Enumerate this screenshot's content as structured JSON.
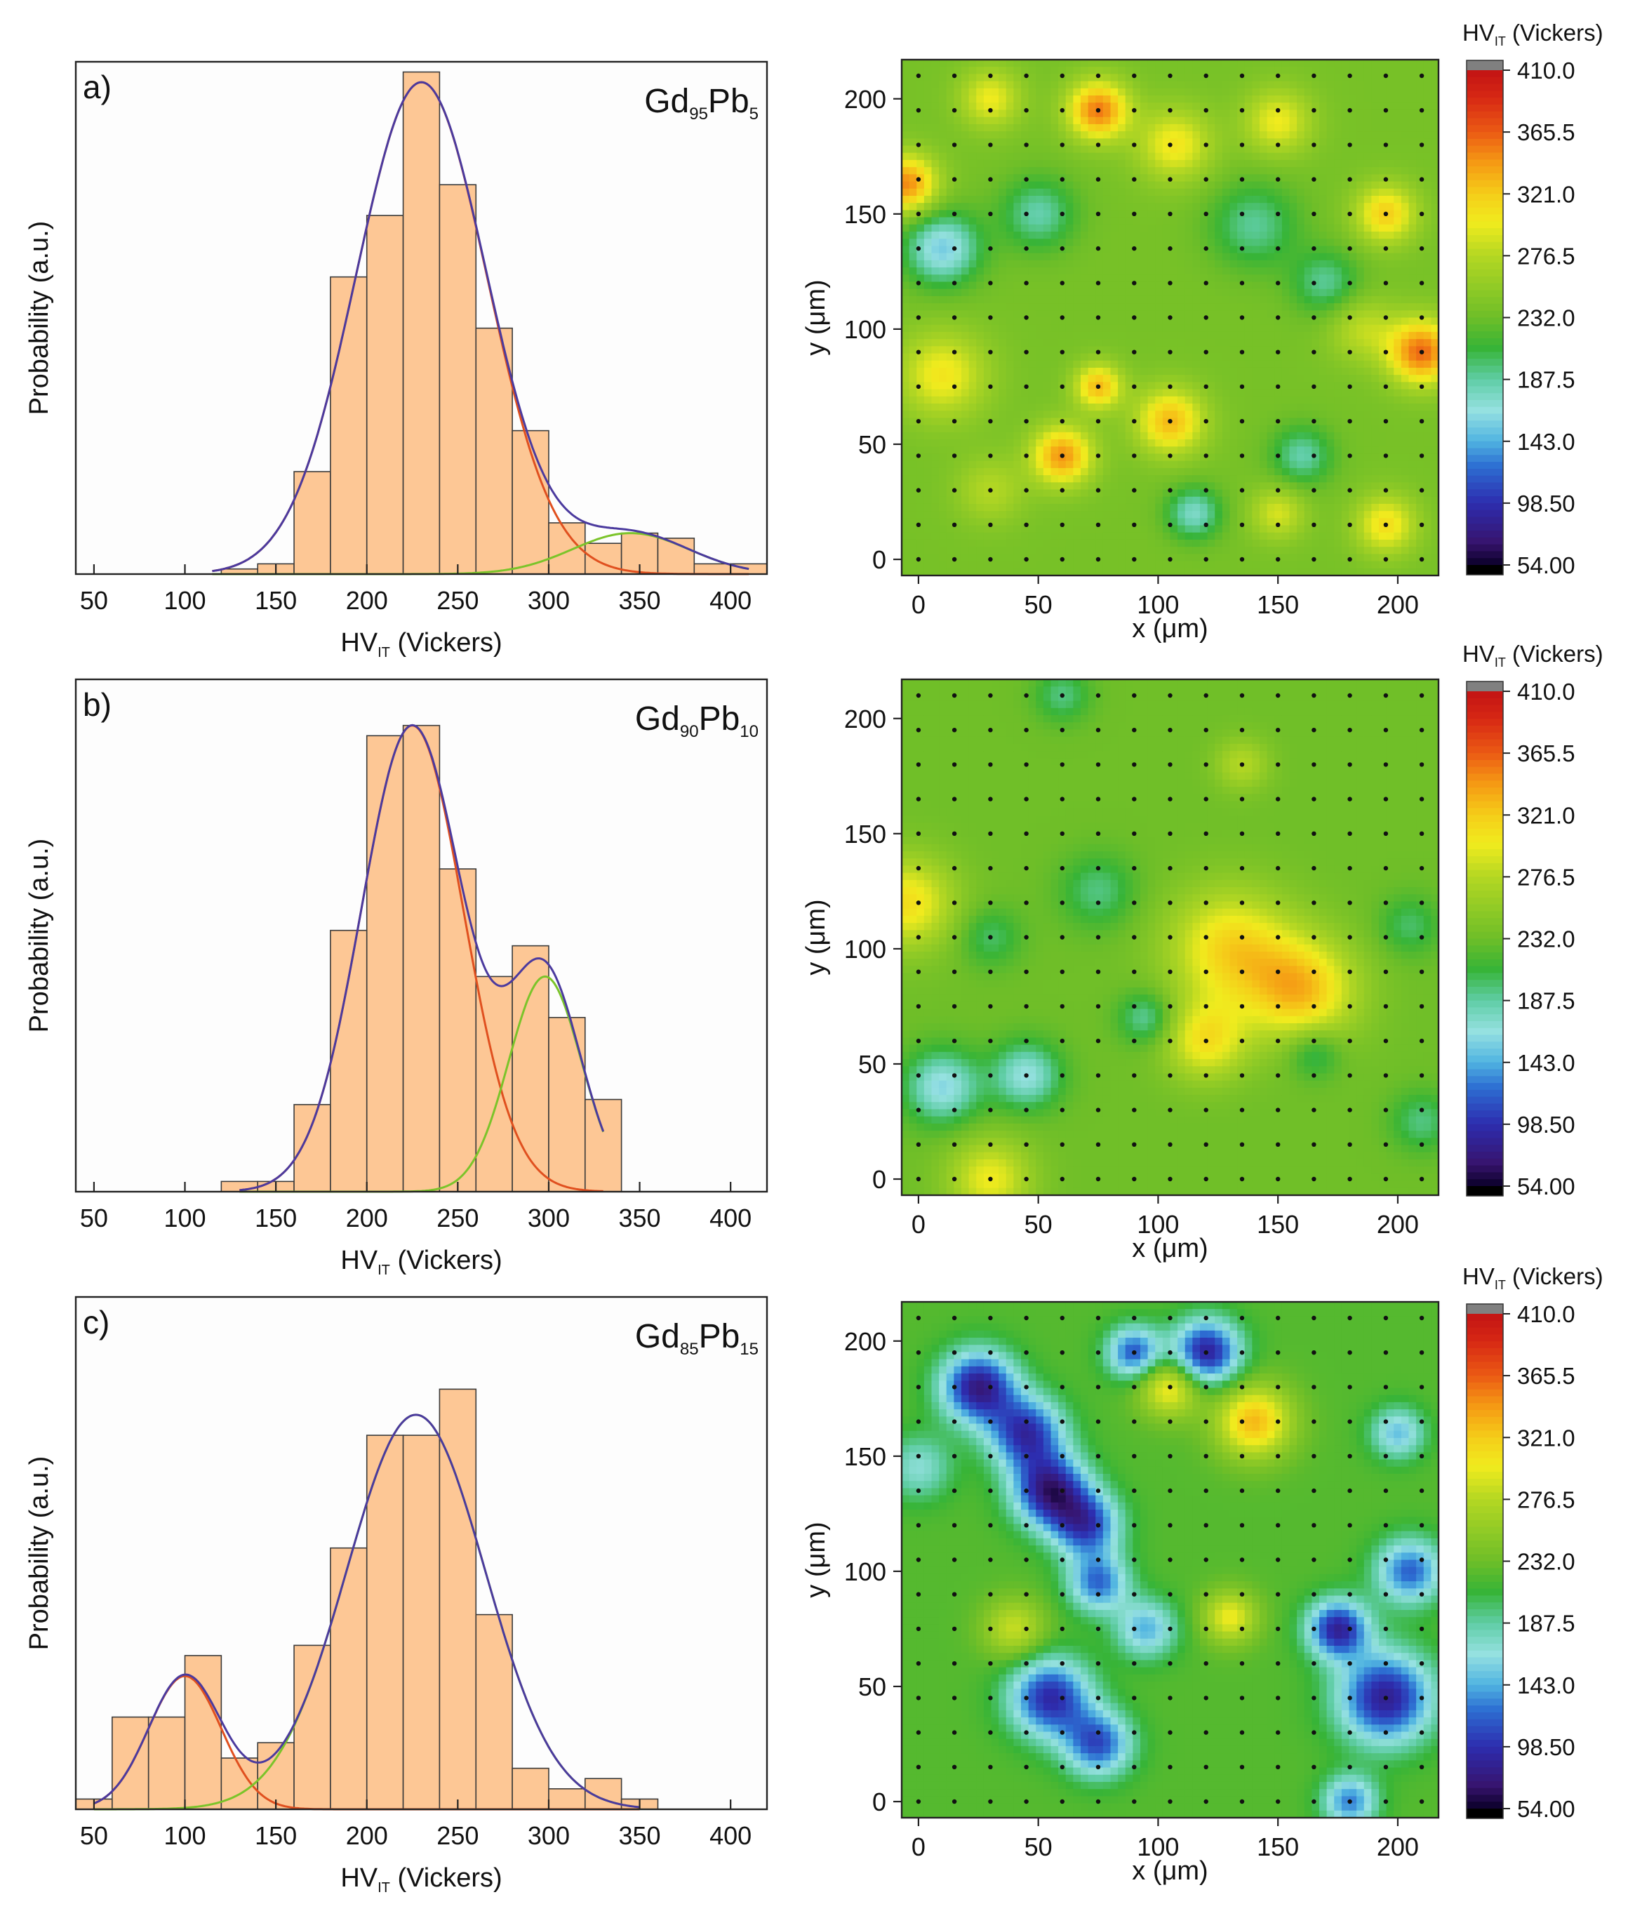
{
  "chart_data": [
    {
      "type": "bar",
      "panel_label": "a)",
      "sample": {
        "base1": "Gd",
        "sub1": "95",
        "base2": "Pb",
        "sub2": "5"
      },
      "xlabel_base": "HV",
      "xlabel_sub": "IT",
      "xlabel_rest": " (Vickers)",
      "ylabel": "Probability (a.u.)",
      "xlim": [
        40,
        420
      ],
      "ylim": [
        0,
        1.0
      ],
      "xticks": [
        "50",
        "100",
        "150",
        "200",
        "250",
        "300",
        "350",
        "400"
      ],
      "bin_width": 20,
      "bin_starts": [
        120,
        140,
        160,
        180,
        200,
        220,
        240,
        260,
        280,
        300,
        320,
        340,
        360,
        380,
        400
      ],
      "values": [
        0.01,
        0.02,
        0.2,
        0.58,
        0.7,
        0.98,
        0.76,
        0.48,
        0.28,
        0.1,
        0.06,
        0.08,
        0.07,
        0.02,
        0.02
      ],
      "fits": [
        {
          "name": "peak 1",
          "color": "#e0501f",
          "peaks": [
            [
              0.96,
              230,
              36
            ]
          ],
          "range": [
            115,
            410
          ]
        },
        {
          "name": "peak 2",
          "color": "#7bc42a",
          "peaks": [
            [
              0.08,
              345,
              32
            ]
          ],
          "range": [
            115,
            410
          ]
        },
        {
          "name": "cumulative",
          "color": "#4b3a9e",
          "peaks": [
            [
              0.96,
              230,
              36
            ],
            [
              0.08,
              345,
              32
            ]
          ],
          "range": [
            115,
            410
          ]
        }
      ]
    },
    {
      "type": "bar",
      "panel_label": "b)",
      "sample": {
        "base1": "Gd",
        "sub1": "90",
        "base2": "Pb",
        "sub2": "10"
      },
      "xlabel_base": "HV",
      "xlabel_sub": "IT",
      "xlabel_rest": " (Vickers)",
      "ylabel": "Probability (a.u.)",
      "xlim": [
        40,
        420
      ],
      "ylim": [
        0,
        1.0
      ],
      "xticks": [
        "50",
        "100",
        "150",
        "200",
        "250",
        "300",
        "350",
        "400"
      ],
      "bin_width": 20,
      "bin_starts": [
        120,
        140,
        160,
        180,
        200,
        220,
        240,
        260,
        280,
        300,
        320
      ],
      "values": [
        0.02,
        0.02,
        0.17,
        0.51,
        0.89,
        0.91,
        0.63,
        0.42,
        0.48,
        0.34,
        0.18
      ],
      "fits": [
        {
          "name": "peak 1",
          "color": "#e0501f",
          "peaks": [
            [
              0.91,
              225,
              28
            ]
          ],
          "range": [
            130,
            330
          ]
        },
        {
          "name": "peak 2",
          "color": "#7bc42a",
          "peaks": [
            [
              0.42,
              298,
              20
            ]
          ],
          "range": [
            130,
            330
          ]
        },
        {
          "name": "cumulative",
          "color": "#4b3a9e",
          "peaks": [
            [
              0.91,
              225,
              28
            ],
            [
              0.42,
              298,
              20
            ]
          ],
          "range": [
            130,
            330
          ]
        }
      ]
    },
    {
      "type": "bar",
      "panel_label": "c)",
      "sample": {
        "base1": "Gd",
        "sub1": "85",
        "base2": "Pb",
        "sub2": "15"
      },
      "xlabel_base": "HV",
      "xlabel_sub": "IT",
      "xlabel_rest": " (Vickers)",
      "ylabel": "Probability (a.u.)",
      "xlim": [
        40,
        420
      ],
      "ylim": [
        0,
        1.0
      ],
      "xticks": [
        "50",
        "100",
        "150",
        "200",
        "250",
        "300",
        "350",
        "400"
      ],
      "bin_width": 20,
      "bin_starts": [
        40,
        60,
        80,
        100,
        120,
        140,
        160,
        180,
        200,
        220,
        240,
        260,
        280,
        300,
        320,
        340
      ],
      "values": [
        0.02,
        0.18,
        0.18,
        0.3,
        0.1,
        0.13,
        0.32,
        0.51,
        0.73,
        0.73,
        0.82,
        0.38,
        0.08,
        0.04,
        0.06,
        0.02
      ],
      "fits": [
        {
          "name": "peak 1",
          "color": "#e0501f",
          "peaks": [
            [
              0.26,
              100,
              20
            ]
          ],
          "range": [
            50,
            350
          ]
        },
        {
          "name": "peak 2",
          "color": "#7bc42a",
          "peaks": [
            [
              0.77,
              227,
              38
            ]
          ],
          "range": [
            50,
            350
          ]
        },
        {
          "name": "cumulative",
          "color": "#4b3a9e",
          "peaks": [
            [
              0.26,
              100,
              20
            ],
            [
              0.77,
              227,
              38
            ]
          ],
          "range": [
            50,
            350
          ]
        }
      ]
    },
    {
      "type": "heatmap",
      "xlabel": "x (μm)",
      "ylabel": "y (μm)",
      "xlim": [
        -7,
        217
      ],
      "ylim": [
        -7,
        217
      ],
      "xticks": [
        "0",
        "50",
        "100",
        "150",
        "200"
      ],
      "yticks": [
        "0",
        "50",
        "100",
        "150",
        "200"
      ],
      "background": 238,
      "grid_step": 15,
      "hotspots": [
        [
          75,
          195,
          355,
          9
        ],
        [
          30,
          200,
          300,
          9
        ],
        [
          -5,
          163,
          350,
          9
        ],
        [
          107,
          180,
          305,
          11
        ],
        [
          150,
          190,
          300,
          10
        ],
        [
          195,
          150,
          320,
          9
        ],
        [
          10,
          135,
          155,
          11
        ],
        [
          50,
          150,
          185,
          11
        ],
        [
          140,
          145,
          190,
          13
        ],
        [
          170,
          120,
          190,
          10
        ],
        [
          210,
          90,
          360,
          10
        ],
        [
          10,
          80,
          305,
          13
        ],
        [
          75,
          75,
          330,
          7
        ],
        [
          105,
          60,
          330,
          10
        ],
        [
          60,
          45,
          345,
          9
        ],
        [
          115,
          20,
          175,
          8
        ],
        [
          160,
          45,
          185,
          9
        ],
        [
          195,
          15,
          310,
          9
        ],
        [
          150,
          20,
          290,
          8
        ],
        [
          185,
          100,
          280,
          10
        ],
        [
          30,
          30,
          275,
          10
        ]
      ]
    },
    {
      "type": "heatmap",
      "xlabel": "x (μm)",
      "ylabel": "y (μm)",
      "xlim": [
        -7,
        217
      ],
      "ylim": [
        -7,
        217
      ],
      "xticks": [
        "0",
        "50",
        "100",
        "150",
        "200"
      ],
      "yticks": [
        "0",
        "50",
        "100",
        "150",
        "200"
      ],
      "background": 233,
      "grid_step": 15,
      "hotspots": [
        [
          -5,
          120,
          310,
          14
        ],
        [
          130,
          100,
          315,
          18
        ],
        [
          160,
          82,
          325,
          16
        ],
        [
          120,
          60,
          305,
          12
        ],
        [
          30,
          0,
          300,
          12
        ],
        [
          10,
          40,
          160,
          11
        ],
        [
          45,
          45,
          165,
          10
        ],
        [
          30,
          105,
          200,
          9
        ],
        [
          75,
          125,
          195,
          11
        ],
        [
          165,
          55,
          190,
          8
        ],
        [
          210,
          25,
          195,
          9
        ],
        [
          205,
          110,
          200,
          9
        ],
        [
          95,
          70,
          185,
          8
        ],
        [
          60,
          210,
          195,
          8
        ],
        [
          135,
          180,
          275,
          8
        ]
      ]
    },
    {
      "type": "heatmap",
      "xlabel": "x (μm)",
      "ylabel": "y (μm)",
      "xlim": [
        -7,
        217
      ],
      "ylim": [
        -7,
        217
      ],
      "xticks": [
        "0",
        "50",
        "100",
        "150",
        "200"
      ],
      "yticks": [
        "0",
        "50",
        "100",
        "150",
        "200"
      ],
      "background": 222,
      "grid_step": 15,
      "hotspots": [
        [
          25,
          180,
          80,
          11
        ],
        [
          45,
          160,
          100,
          11
        ],
        [
          55,
          135,
          80,
          11
        ],
        [
          70,
          120,
          110,
          10
        ],
        [
          75,
          95,
          125,
          9
        ],
        [
          55,
          45,
          95,
          12
        ],
        [
          75,
          25,
          115,
          10
        ],
        [
          120,
          195,
          85,
          10
        ],
        [
          90,
          195,
          115,
          8
        ],
        [
          195,
          45,
          85,
          14
        ],
        [
          175,
          75,
          90,
          9
        ],
        [
          205,
          100,
          120,
          10
        ],
        [
          95,
          75,
          145,
          9
        ],
        [
          180,
          0,
          130,
          8
        ],
        [
          0,
          145,
          170,
          10
        ],
        [
          140,
          165,
          330,
          11
        ],
        [
          105,
          180,
          310,
          9
        ],
        [
          130,
          80,
          300,
          8
        ],
        [
          40,
          75,
          285,
          9
        ],
        [
          200,
          160,
          150,
          8
        ]
      ]
    }
  ],
  "colorbars": [
    {
      "label_base": "HV",
      "label_sub": "IT",
      "label_rest": " (Vickers)",
      "ticks": [
        "410.0",
        "365.5",
        "321.0",
        "276.5",
        "232.0",
        "187.5",
        "143.0",
        "98.50",
        "54.00"
      ],
      "range": [
        54,
        410
      ],
      "over_color": "#808080",
      "under_color": "#000000"
    },
    {
      "label_base": "HV",
      "label_sub": "IT",
      "label_rest": " (Vickers)",
      "ticks": [
        "410.0",
        "365.5",
        "321.0",
        "276.5",
        "232.0",
        "187.5",
        "143.0",
        "98.50",
        "54.00"
      ],
      "range": [
        54,
        410
      ],
      "over_color": "#808080",
      "under_color": "#000000"
    },
    {
      "label_base": "HV",
      "label_sub": "IT",
      "label_rest": " (Vickers)",
      "ticks": [
        "410.0",
        "365.5",
        "321.0",
        "276.5",
        "232.0",
        "187.5",
        "143.0",
        "98.50",
        "54.00"
      ],
      "range": [
        54,
        410
      ],
      "over_color": "#808080",
      "under_color": "#000000"
    }
  ],
  "colors": {
    "bar_fill": "#fdc795",
    "bar_stroke": "#3a3a3a",
    "frame": "#222222"
  }
}
